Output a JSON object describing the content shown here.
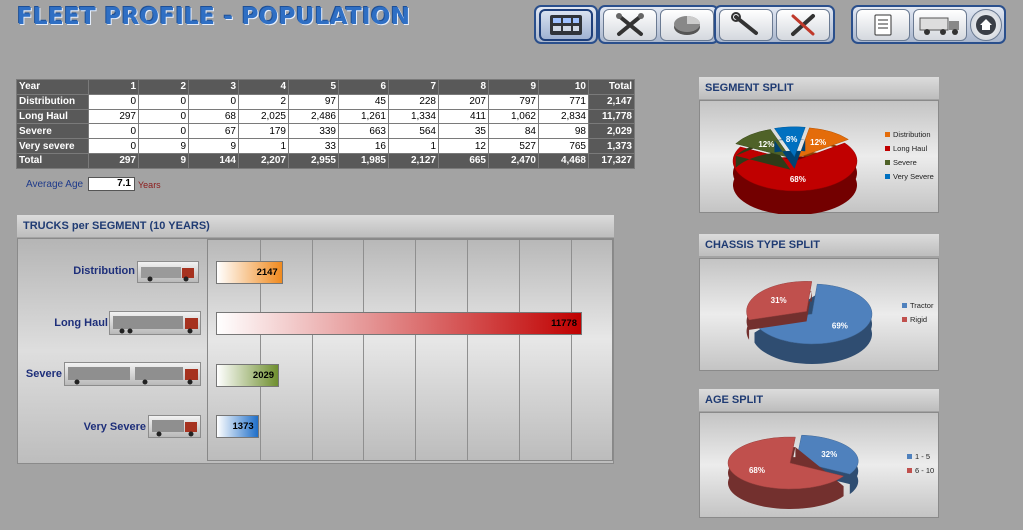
{
  "title": "FLEET PROFILE - POPULATION",
  "toolbar": {
    "groups": [
      [
        "fleet-overview-icon"
      ],
      [
        "tools-cross-icon",
        "pie-chart-icon"
      ],
      [
        "wrench-icon",
        "screwdriver-wrench-icon"
      ],
      [
        "document-icon",
        "truck-icon",
        "home-icon"
      ]
    ]
  },
  "table": {
    "headers": [
      "Year",
      "1",
      "2",
      "3",
      "4",
      "5",
      "6",
      "7",
      "8",
      "9",
      "10",
      "Total"
    ],
    "rows": [
      [
        "Distribution",
        "0",
        "0",
        "0",
        "2",
        "97",
        "45",
        "228",
        "207",
        "797",
        "771",
        "2,147"
      ],
      [
        "Long Haul",
        "297",
        "0",
        "68",
        "2,025",
        "2,486",
        "1,261",
        "1,334",
        "411",
        "1,062",
        "2,834",
        "11,778"
      ],
      [
        "Severe",
        "0",
        "0",
        "67",
        "179",
        "339",
        "663",
        "564",
        "35",
        "84",
        "98",
        "2,029"
      ],
      [
        "Very severe",
        "0",
        "9",
        "9",
        "1",
        "33",
        "16",
        "1",
        "12",
        "527",
        "765",
        "1,373"
      ]
    ],
    "total": [
      "Total",
      "297",
      "9",
      "144",
      "2,207",
      "2,955",
      "1,985",
      "2,127",
      "665",
      "2,470",
      "4,468",
      "17,327"
    ]
  },
  "average_age": {
    "label": "Average Age",
    "value": "7.1",
    "unit": "Years"
  },
  "trucks_panel": {
    "title": "TRUCKS per SEGMENT (10 YEARS)",
    "segments": [
      {
        "label": "Distribution",
        "value": "2147"
      },
      {
        "label": "Long Haul",
        "value": "11778"
      },
      {
        "label": "Severe",
        "value": "2029"
      },
      {
        "label": "Very Severe",
        "value": "1373"
      }
    ]
  },
  "chart_data": [
    {
      "type": "bar",
      "categories": [
        "Distribution",
        "Long Haul",
        "Severe",
        "Very Severe"
      ],
      "values": [
        2147,
        11778,
        2029,
        1373
      ],
      "colors": [
        "#f08a1e",
        "#c00000",
        "#6f8f2f",
        "#1f6fc9"
      ],
      "title": "TRUCKS per SEGMENT (10 YEARS)"
    },
    {
      "type": "pie",
      "title": "SEGMENT SPLIT",
      "labels": [
        "Distribution",
        "Long Haul",
        "Severe",
        "Very Severe"
      ],
      "values": [
        12,
        68,
        12,
        8
      ],
      "value_labels": [
        "12%",
        "68%",
        "12%",
        "8%"
      ],
      "colors": [
        "#e46c0a",
        "#c00000",
        "#4f6228",
        "#0070c0"
      ],
      "legend": "right"
    },
    {
      "type": "pie",
      "title": "CHASSIS TYPE SPLIT",
      "labels": [
        "Tractor",
        "Rigid"
      ],
      "values": [
        69,
        31
      ],
      "value_labels": [
        "69%",
        "31%"
      ],
      "colors": [
        "#4f81bd",
        "#c0504d"
      ],
      "legend": "right"
    },
    {
      "type": "pie",
      "title": "AGE SPLIT",
      "labels": [
        "1 - 5",
        "6 - 10"
      ],
      "values": [
        32,
        68
      ],
      "value_labels": [
        "32%",
        "68%"
      ],
      "colors": [
        "#4f81bd",
        "#c0504d"
      ],
      "legend": "right"
    }
  ]
}
